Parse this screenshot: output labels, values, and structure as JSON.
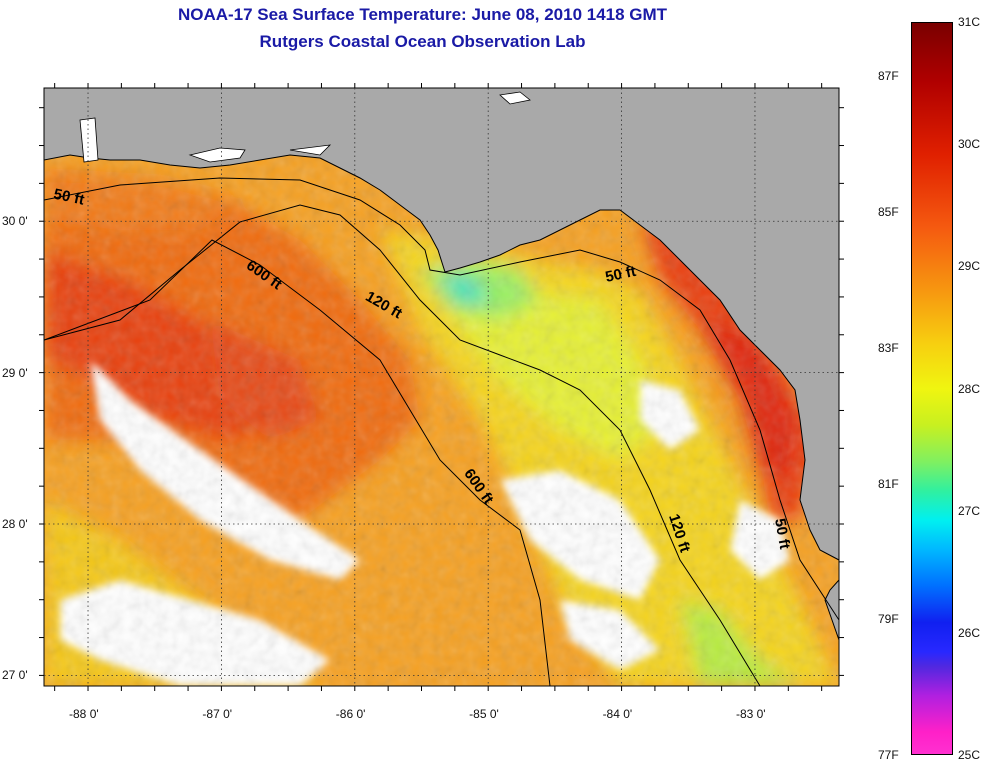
{
  "header": {
    "title": "NOAA-17 Sea Surface Temperature:  June 08, 2010 1418 GMT",
    "subtitle": "Rutgers Coastal Ocean Observation Lab"
  },
  "axes": {
    "lat_ticks": [
      {
        "value": 30,
        "label": "30 0'"
      },
      {
        "value": 29,
        "label": "29 0'"
      },
      {
        "value": 28,
        "label": "28 0'"
      },
      {
        "value": 27,
        "label": "27 0'"
      }
    ],
    "lon_ticks": [
      {
        "value": -88,
        "label": "-88 0'"
      },
      {
        "value": -87,
        "label": "-87 0'"
      },
      {
        "value": -86,
        "label": "-86 0'"
      },
      {
        "value": -85,
        "label": "-85 0'"
      },
      {
        "value": -84,
        "label": "-84 0'"
      },
      {
        "value": -83,
        "label": "-83 0'"
      }
    ],
    "lat_range": [
      26.93,
      30.88
    ],
    "lon_range": [
      -88.33,
      -82.37
    ]
  },
  "contours": {
    "labels": [
      {
        "text": "50 ft",
        "lon": -88.15,
        "lat": 30.13,
        "angle": 12
      },
      {
        "text": "600 ft",
        "lon": -86.7,
        "lat": 29.62,
        "angle": 35
      },
      {
        "text": "120 ft",
        "lon": -85.8,
        "lat": 29.42,
        "angle": 30
      },
      {
        "text": "50 ft",
        "lon": -84.0,
        "lat": 29.62,
        "angle": -12
      },
      {
        "text": "600 ft",
        "lon": -85.1,
        "lat": 28.23,
        "angle": 55
      },
      {
        "text": "120 ft",
        "lon": -83.6,
        "lat": 27.93,
        "angle": 72
      },
      {
        "text": "50 ft",
        "lon": -82.83,
        "lat": 27.93,
        "angle": 80
      }
    ]
  },
  "colorbar": {
    "celsius_labels": [
      "31C",
      "30C",
      "29C",
      "28C",
      "27C",
      "26C",
      "25C"
    ],
    "fahrenheit_labels": [
      "87F",
      "85F",
      "83F",
      "81F",
      "79F",
      "77F"
    ],
    "celsius_range": [
      25,
      31
    ],
    "fahrenheit_range": [
      77,
      87.8
    ]
  },
  "colors": {
    "land": "#a9a9a9",
    "no_data": "#ffffff",
    "title": "#1a1aa6"
  }
}
